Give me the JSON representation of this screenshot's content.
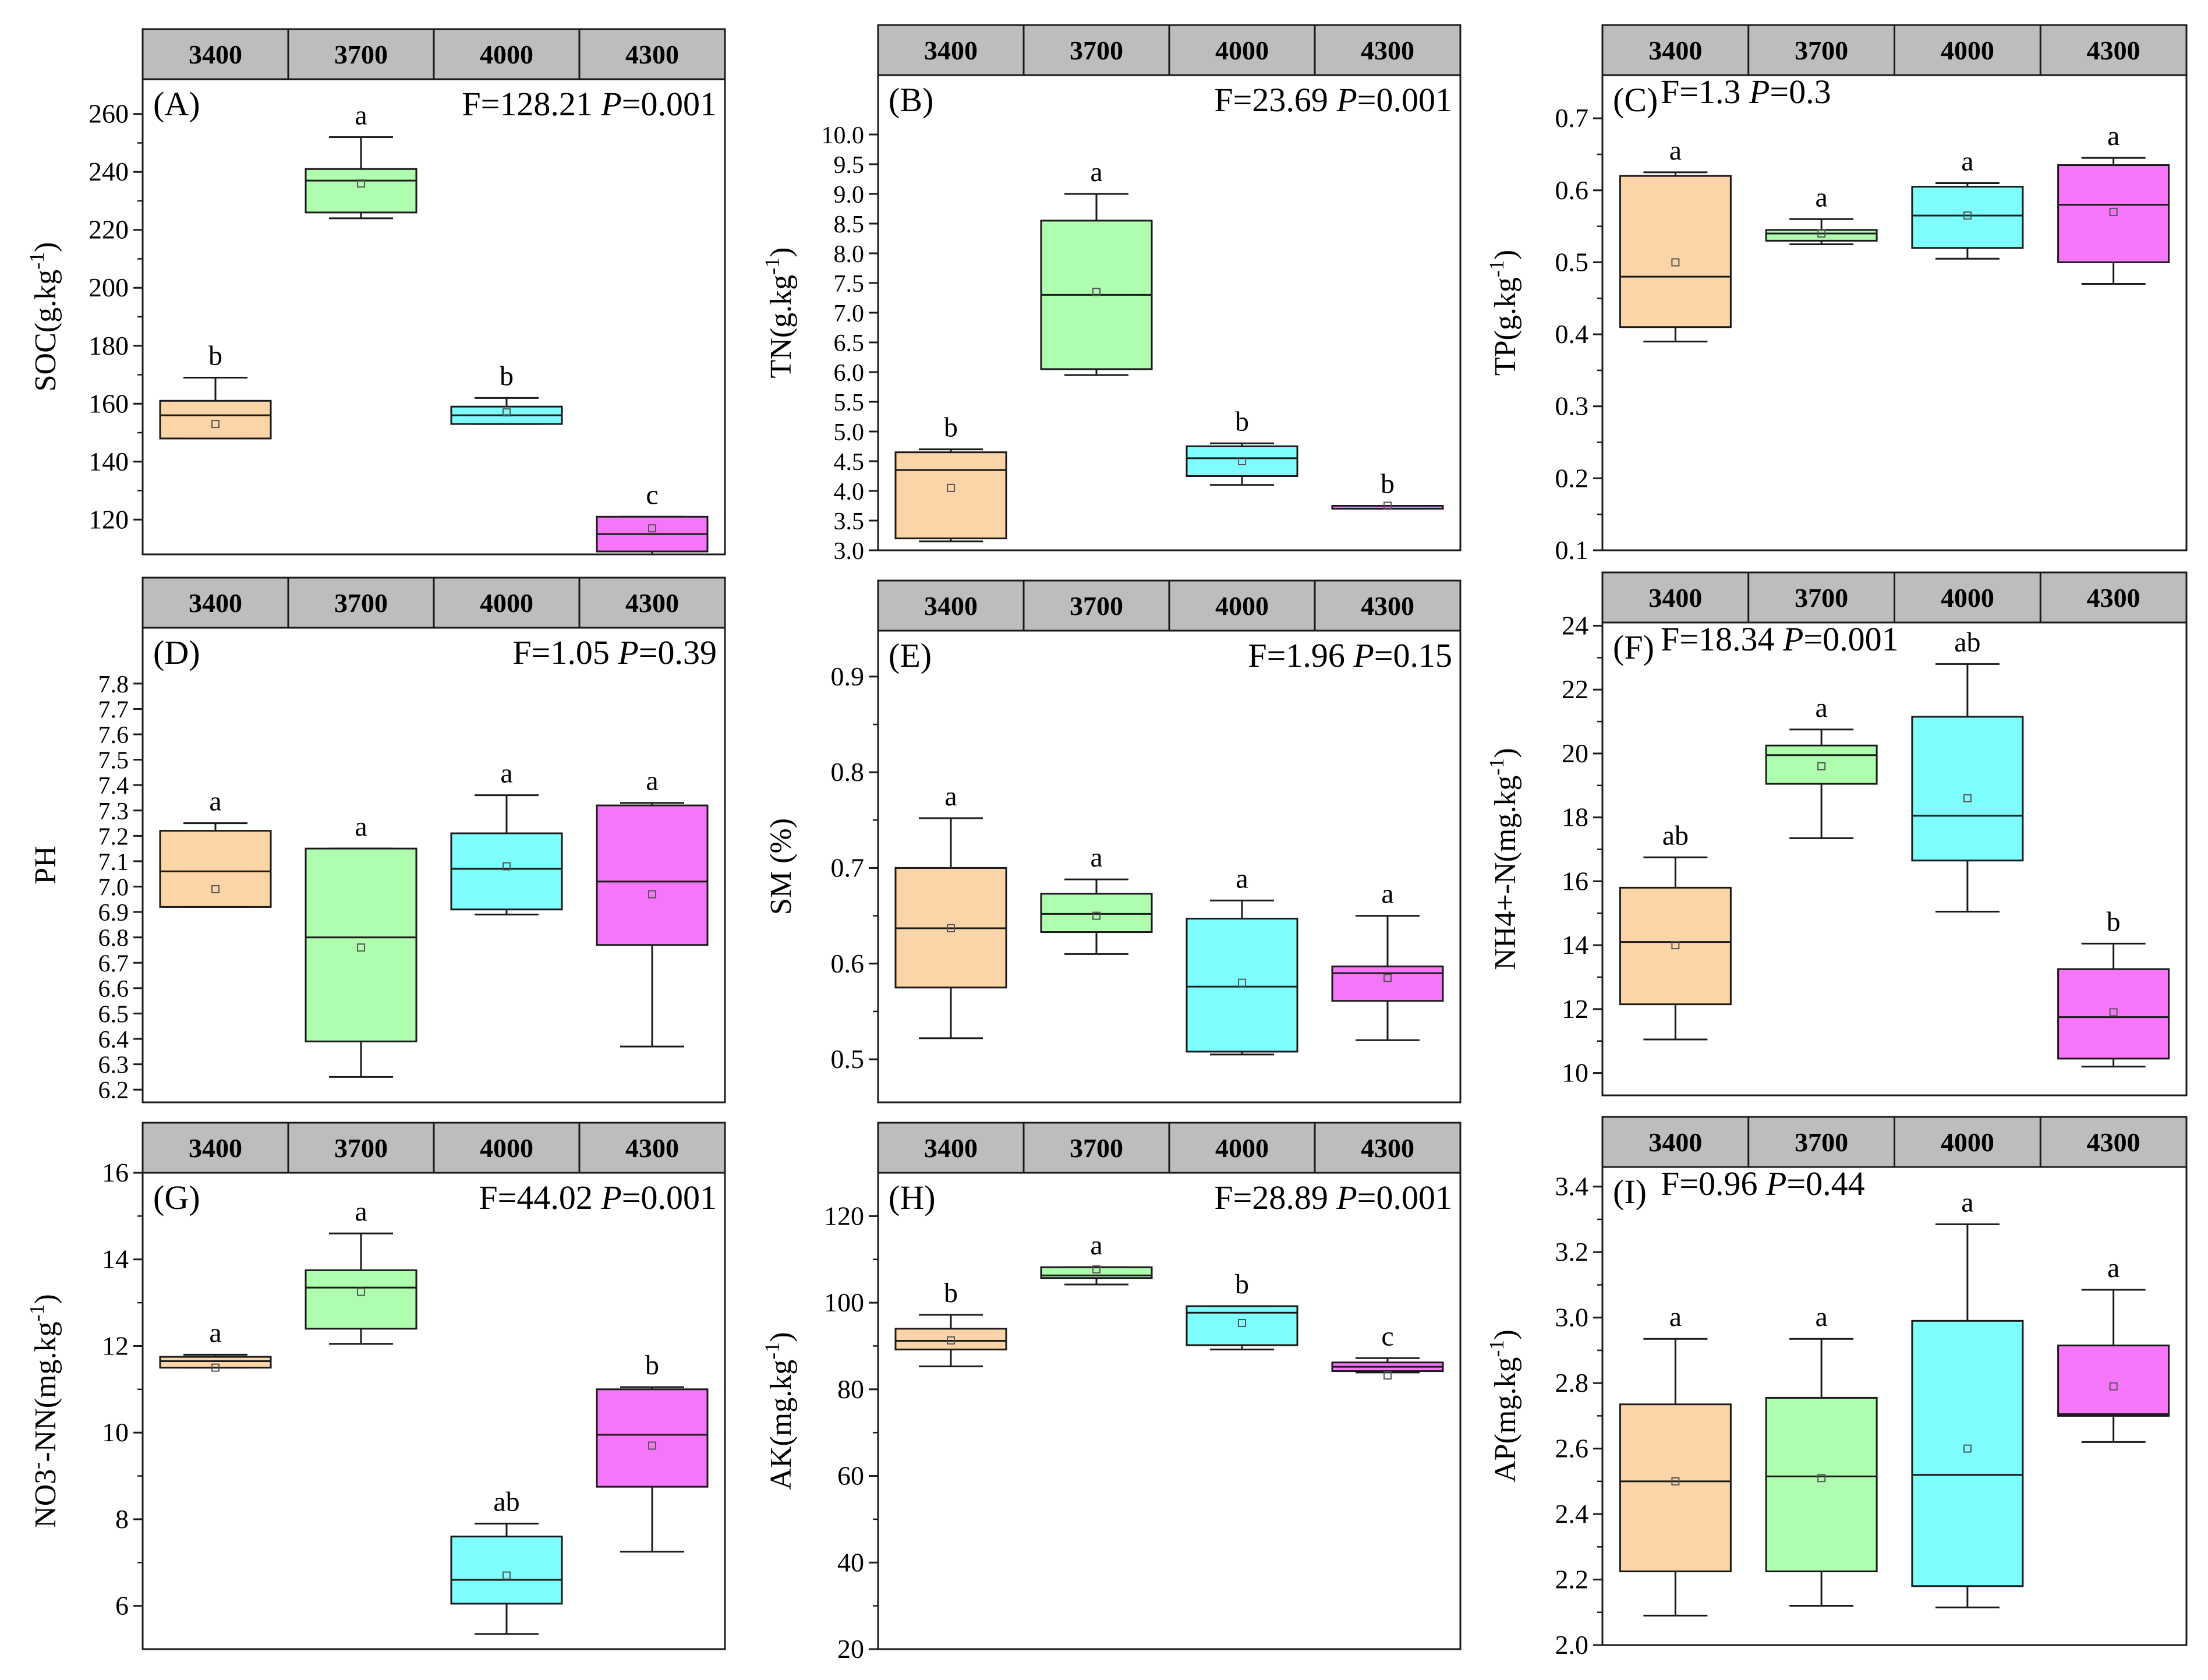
{
  "colors": {
    "3400": "#FBD5A8",
    "3700": "#AFFDAE",
    "4000": "#7EFEFE",
    "4300": "#F576F8",
    "header_bg": "#BDBDBD",
    "mean_marker": "#555555"
  },
  "chart_data": [
    {
      "type": "box",
      "panel": "(A)",
      "categories": [
        "3400",
        "3700",
        "4000",
        "4300"
      ],
      "ylabel": "SOC(g.kg-1)",
      "ylabel_base": "SOC(g.kg",
      "ylabel_sup": "-1",
      "ylabel_tail": ")",
      "ylim": [
        108,
        272
      ],
      "yticks": [
        120,
        140,
        160,
        180,
        200,
        220,
        240,
        260
      ],
      "minor_ticks": true,
      "stats": {
        "F": "F=128.21",
        "P": "P",
        "P_value": "=0.001"
      },
      "boxes": [
        {
          "min": 148,
          "q1": 148,
          "median": 156,
          "q3": 161,
          "max": 169,
          "mean": 153,
          "letter": "b"
        },
        {
          "min": 224,
          "q1": 226,
          "median": 237,
          "q3": 241,
          "max": 252,
          "mean": 236,
          "letter": "a"
        },
        {
          "min": 153,
          "q1": 153,
          "median": 156,
          "q3": 159,
          "max": 162,
          "mean": 157,
          "letter": "b"
        },
        {
          "min": 108,
          "q1": 109,
          "median": 115,
          "q3": 121,
          "max": 121,
          "mean": 117,
          "letter": "c"
        }
      ]
    },
    {
      "type": "box",
      "panel": "(B)",
      "categories": [
        "3400",
        "3700",
        "4000",
        "4300"
      ],
      "ylabel": "TN(g.kg-1)",
      "ylabel_base": "TN(g.kg",
      "ylabel_sup": "-1",
      "ylabel_tail": ")",
      "ylim": [
        3.0,
        11.0
      ],
      "yticks": [
        3.0,
        3.5,
        4.0,
        4.5,
        5.0,
        5.5,
        6.0,
        6.5,
        7.0,
        7.5,
        8.0,
        8.5,
        9.0,
        9.5,
        10.0
      ],
      "minor_ticks": false,
      "stats": {
        "F": "F=23.69",
        "P": "P",
        "P_value": "=0.001"
      },
      "boxes": [
        {
          "min": 3.15,
          "q1": 3.2,
          "median": 4.35,
          "q3": 4.65,
          "max": 4.7,
          "mean": 4.05,
          "letter": "b"
        },
        {
          "min": 5.95,
          "q1": 6.05,
          "median": 7.3,
          "q3": 8.55,
          "max": 9.0,
          "mean": 7.35,
          "letter": "a"
        },
        {
          "min": 4.1,
          "q1": 4.25,
          "median": 4.55,
          "q3": 4.75,
          "max": 4.8,
          "mean": 4.5,
          "letter": "b"
        },
        {
          "min": 3.7,
          "q1": 3.7,
          "median": 3.75,
          "q3": 3.75,
          "max": 3.75,
          "mean": 3.75,
          "letter": "b"
        }
      ]
    },
    {
      "type": "box",
      "panel": "(C)",
      "categories": [
        "3400",
        "3700",
        "4000",
        "4300"
      ],
      "ylabel": "TP(g.kg-1)",
      "ylabel_base": "TP(g.kg",
      "ylabel_sup": "-1",
      "ylabel_tail": ")",
      "ylim": [
        0.1,
        0.76
      ],
      "yticks": [
        0.1,
        0.2,
        0.3,
        0.4,
        0.5,
        0.6,
        0.7
      ],
      "minor_ticks": true,
      "stats": {
        "F": "F=1.3",
        "P": "P",
        "P_value": "=0.3"
      },
      "boxes": [
        {
          "min": 0.39,
          "q1": 0.41,
          "median": 0.48,
          "q3": 0.62,
          "max": 0.625,
          "mean": 0.5,
          "letter": "a"
        },
        {
          "min": 0.525,
          "q1": 0.53,
          "median": 0.54,
          "q3": 0.545,
          "max": 0.56,
          "mean": 0.54,
          "letter": "a"
        },
        {
          "min": 0.505,
          "q1": 0.52,
          "median": 0.565,
          "q3": 0.605,
          "max": 0.61,
          "mean": 0.565,
          "letter": "a"
        },
        {
          "min": 0.47,
          "q1": 0.5,
          "median": 0.58,
          "q3": 0.635,
          "max": 0.645,
          "mean": 0.57,
          "letter": "a"
        }
      ]
    },
    {
      "type": "box",
      "panel": "(D)",
      "categories": [
        "3400",
        "3700",
        "4000",
        "4300"
      ],
      "ylabel": "PH",
      "ylabel_base": "PH",
      "ylabel_sup": "",
      "ylabel_tail": "",
      "ylim": [
        6.15,
        8.02
      ],
      "yticks": [
        6.2,
        6.3,
        6.4,
        6.5,
        6.6,
        6.7,
        6.8,
        6.9,
        7.0,
        7.1,
        7.2,
        7.3,
        7.4,
        7.5,
        7.6,
        7.7,
        7.8
      ],
      "minor_ticks": false,
      "stats": {
        "F": "F=1.05",
        "P": "P",
        "P_value": "=0.39"
      },
      "boxes": [
        {
          "min": 6.92,
          "q1": 6.92,
          "median": 7.06,
          "q3": 7.22,
          "max": 7.25,
          "mean": 6.99,
          "letter": "a"
        },
        {
          "min": 6.25,
          "q1": 6.39,
          "median": 6.8,
          "q3": 7.15,
          "max": 7.15,
          "mean": 6.76,
          "letter": "a"
        },
        {
          "min": 6.89,
          "q1": 6.91,
          "median": 7.07,
          "q3": 7.21,
          "max": 7.36,
          "mean": 7.08,
          "letter": "a"
        },
        {
          "min": 6.37,
          "q1": 6.77,
          "median": 7.02,
          "q3": 7.32,
          "max": 7.33,
          "mean": 6.97,
          "letter": "a"
        }
      ]
    },
    {
      "type": "box",
      "panel": "(E)",
      "categories": [
        "3400",
        "3700",
        "4000",
        "4300"
      ],
      "ylabel": "SM (%)",
      "ylabel_base": "SM (%)",
      "ylabel_sup": "",
      "ylabel_tail": "",
      "ylim": [
        0.455,
        0.948
      ],
      "yticks": [
        0.5,
        0.6,
        0.7,
        0.8,
        0.9
      ],
      "minor_ticks": true,
      "stats": {
        "F": "F=1.96",
        "P": "P",
        "P_value": "=0.15"
      },
      "boxes": [
        {
          "min": 0.522,
          "q1": 0.575,
          "median": 0.637,
          "q3": 0.7,
          "max": 0.752,
          "mean": 0.637,
          "letter": "a"
        },
        {
          "min": 0.61,
          "q1": 0.633,
          "median": 0.652,
          "q3": 0.673,
          "max": 0.688,
          "mean": 0.65,
          "letter": "a"
        },
        {
          "min": 0.505,
          "q1": 0.508,
          "median": 0.576,
          "q3": 0.647,
          "max": 0.666,
          "mean": 0.58,
          "letter": "a"
        },
        {
          "min": 0.52,
          "q1": 0.561,
          "median": 0.59,
          "q3": 0.597,
          "max": 0.65,
          "mean": 0.585,
          "letter": "a"
        }
      ]
    },
    {
      "type": "box",
      "panel": "(F)",
      "categories": [
        "3400",
        "3700",
        "4000",
        "4300"
      ],
      "ylabel": "NH4+-N(mg.kg-1)",
      "ylabel_base": "NH4+-N(mg.kg",
      "ylabel_sup": "-1",
      "ylabel_tail": ")",
      "ylim": [
        9.3,
        24.1
      ],
      "yticks": [
        10,
        12,
        14,
        16,
        18,
        20,
        22,
        24
      ],
      "minor_ticks": true,
      "stats": {
        "F": "F=18.34",
        "P": "P",
        "P_value": "=0.001"
      },
      "boxes": [
        {
          "min": 11.05,
          "q1": 12.15,
          "median": 14.1,
          "q3": 15.8,
          "max": 16.75,
          "mean": 14.0,
          "letter": "ab"
        },
        {
          "min": 17.35,
          "q1": 19.05,
          "median": 19.95,
          "q3": 20.25,
          "max": 20.75,
          "mean": 19.6,
          "letter": "a"
        },
        {
          "min": 15.05,
          "q1": 16.65,
          "median": 18.05,
          "q3": 21.15,
          "max": 22.8,
          "mean": 18.6,
          "letter": "ab"
        },
        {
          "min": 10.2,
          "q1": 10.45,
          "median": 11.75,
          "q3": 13.25,
          "max": 14.05,
          "mean": 11.9,
          "letter": "b"
        }
      ]
    },
    {
      "type": "box",
      "panel": "(G)",
      "categories": [
        "3400",
        "3700",
        "4000",
        "4300"
      ],
      "ylabel": "NO3--NN(mg.kg-1)",
      "ylabel_base": "NO3",
      "ylabel_sup": "-",
      "ylabel_tail": "-NN(mg.kg",
      "ylabel_sup2": "-1",
      "ylabel_tail2": ")",
      "ylim": [
        5.0,
        16.0
      ],
      "yticks": [
        6,
        8,
        10,
        12,
        14,
        16
      ],
      "minor_ticks": true,
      "stats": {
        "F": "F=44.02",
        "P": "P",
        "P_value": "=0.001"
      },
      "boxes": [
        {
          "min": 11.5,
          "q1": 11.5,
          "median": 11.65,
          "q3": 11.75,
          "max": 11.8,
          "mean": 11.5,
          "letter": "a"
        },
        {
          "min": 12.05,
          "q1": 12.4,
          "median": 13.35,
          "q3": 13.75,
          "max": 14.6,
          "mean": 13.25,
          "letter": "a"
        },
        {
          "min": 5.35,
          "q1": 6.05,
          "median": 6.6,
          "q3": 7.6,
          "max": 7.9,
          "mean": 6.7,
          "letter": "ab"
        },
        {
          "min": 7.25,
          "q1": 8.75,
          "median": 9.95,
          "q3": 11.0,
          "max": 11.05,
          "mean": 9.7,
          "letter": "b"
        }
      ]
    },
    {
      "type": "box",
      "panel": "(H)",
      "categories": [
        "3400",
        "3700",
        "4000",
        "4300"
      ],
      "ylabel": "AK(mg.kg-1)",
      "ylabel_base": "AK(mg.kg",
      "ylabel_sup": "-1",
      "ylabel_tail": ")",
      "ylim": [
        20,
        130
      ],
      "yticks": [
        20,
        40,
        60,
        80,
        100,
        120
      ],
      "minor_ticks": true,
      "stats": {
        "F": "F=28.89",
        "P": "P",
        "P_value": "=0.001"
      },
      "boxes": [
        {
          "min": 85.3,
          "q1": 89.2,
          "median": 91.2,
          "q3": 94.0,
          "max": 97.2,
          "mean": 91.3,
          "letter": "b"
        },
        {
          "min": 104.2,
          "q1": 105.7,
          "median": 106.3,
          "q3": 108.2,
          "max": 108.2,
          "mean": 107.7,
          "letter": "a"
        },
        {
          "min": 89.2,
          "q1": 90.2,
          "median": 97.7,
          "q3": 99.2,
          "max": 99.2,
          "mean": 95.3,
          "letter": "b"
        },
        {
          "min": 83.9,
          "q1": 84.2,
          "median": 85.2,
          "q3": 86.2,
          "max": 87.2,
          "mean": 83.2,
          "letter": "c"
        }
      ]
    },
    {
      "type": "box",
      "panel": "(I)",
      "categories": [
        "3400",
        "3700",
        "4000",
        "4300"
      ],
      "ylabel": "AP(mg.kg-1)",
      "ylabel_base": "AP(mg.kg",
      "ylabel_sup": "-1",
      "ylabel_tail": ")",
      "ylim": [
        2.0,
        3.46
      ],
      "yticks": [
        2.0,
        2.2,
        2.4,
        2.6,
        2.8,
        3.0,
        3.2,
        3.4
      ],
      "minor_ticks": true,
      "stats": {
        "F": "F=0.96",
        "P": "P",
        "P_value": "=0.44"
      },
      "boxes": [
        {
          "min": 2.09,
          "q1": 2.225,
          "median": 2.5,
          "q3": 2.735,
          "max": 2.935,
          "mean": 2.5,
          "letter": "a"
        },
        {
          "min": 2.12,
          "q1": 2.225,
          "median": 2.515,
          "q3": 2.755,
          "max": 2.935,
          "mean": 2.51,
          "letter": "a"
        },
        {
          "min": 2.115,
          "q1": 2.18,
          "median": 2.52,
          "q3": 2.99,
          "max": 3.285,
          "mean": 2.6,
          "letter": "a"
        },
        {
          "min": 2.62,
          "q1": 2.7,
          "median": 2.705,
          "q3": 2.915,
          "max": 3.085,
          "mean": 2.79,
          "letter": "a"
        }
      ]
    }
  ]
}
